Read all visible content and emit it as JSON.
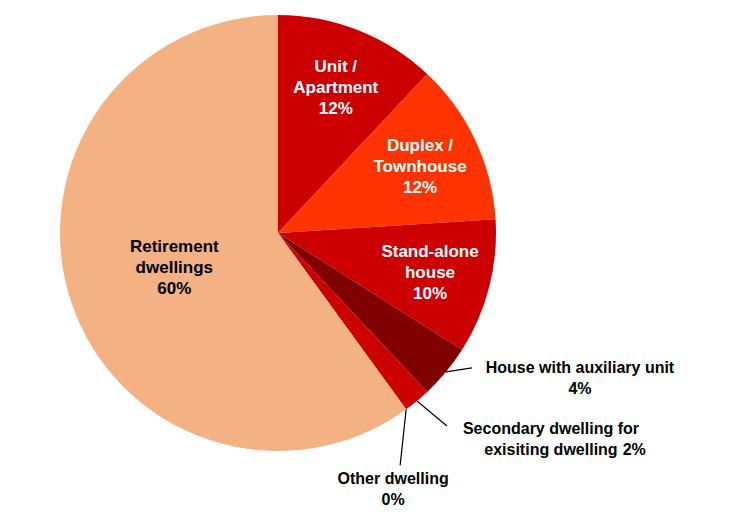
{
  "chart_data": {
    "type": "pie",
    "categories": [
      "Unit / Apartment",
      "Duplex / Townhouse",
      "Stand-alone house",
      "House with auxiliary unit",
      "Secondary dwelling for exisiting dwelling",
      "Other dwelling",
      "Retirement dwellings"
    ],
    "values": [
      12,
      12,
      10,
      4,
      2,
      0,
      60
    ],
    "value_labels": [
      "12%",
      "12%",
      "10%",
      "4%",
      "2%",
      "0%",
      "60%"
    ],
    "colors": [
      "#cc0000",
      "#ff3300",
      "#cc0000",
      "#800000",
      "#cc0000",
      "#cc0000",
      "#f4b183"
    ],
    "data_labels": true
  }
}
